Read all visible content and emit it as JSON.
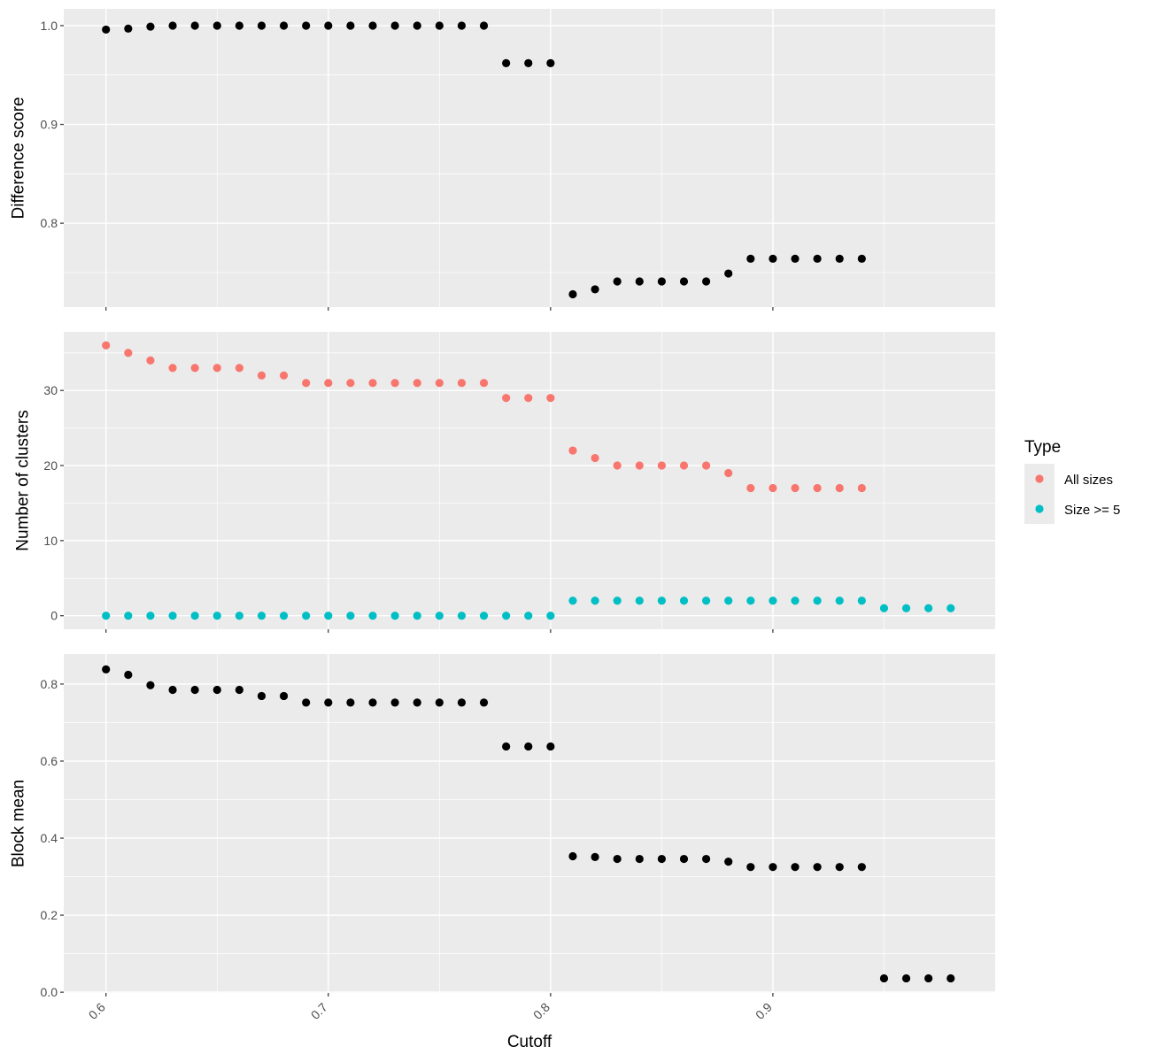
{
  "chart_data": [
    {
      "type": "scatter",
      "ylabel": "Difference score",
      "ylim": [
        0.715,
        1.017
      ],
      "y_ticks": [
        "0.8",
        "0.9",
        "1.0"
      ],
      "y_tick_values": [
        0.8,
        0.9,
        1.0
      ],
      "y_minor_values": [
        0.75,
        0.85,
        0.95
      ],
      "series": [
        {
          "color": "#000000",
          "points": [
            [
              0.6,
              0.996
            ],
            [
              0.61,
              0.997
            ],
            [
              0.62,
              0.999
            ],
            [
              0.63,
              1.0
            ],
            [
              0.64,
              1.0
            ],
            [
              0.65,
              1.0
            ],
            [
              0.66,
              1.0
            ],
            [
              0.67,
              1.0
            ],
            [
              0.68,
              1.0
            ],
            [
              0.69,
              1.0
            ],
            [
              0.7,
              1.0
            ],
            [
              0.71,
              1.0
            ],
            [
              0.72,
              1.0
            ],
            [
              0.73,
              1.0
            ],
            [
              0.74,
              1.0
            ],
            [
              0.75,
              1.0
            ],
            [
              0.76,
              1.0
            ],
            [
              0.77,
              1.0
            ],
            [
              0.78,
              0.962
            ],
            [
              0.79,
              0.962
            ],
            [
              0.8,
              0.962
            ],
            [
              0.81,
              0.728
            ],
            [
              0.82,
              0.733
            ],
            [
              0.83,
              0.741
            ],
            [
              0.84,
              0.741
            ],
            [
              0.85,
              0.741
            ],
            [
              0.86,
              0.741
            ],
            [
              0.87,
              0.741
            ],
            [
              0.88,
              0.749
            ],
            [
              0.89,
              0.764
            ],
            [
              0.9,
              0.764
            ],
            [
              0.91,
              0.764
            ],
            [
              0.92,
              0.764
            ],
            [
              0.93,
              0.764
            ],
            [
              0.94,
              0.764
            ]
          ]
        }
      ]
    },
    {
      "type": "scatter",
      "ylabel": "Number of clusters",
      "ylim": [
        -1.8,
        37.8
      ],
      "y_ticks": [
        "0",
        "10",
        "20",
        "30"
      ],
      "y_tick_values": [
        0,
        10,
        20,
        30
      ],
      "y_minor_values": [
        5,
        15,
        25,
        35
      ],
      "legend": {
        "title": "Type",
        "placement": "right",
        "entries": [
          {
            "label": "All sizes",
            "color": "#F8766D"
          },
          {
            "label": "Size >= 5",
            "color": "#00BFC4"
          }
        ]
      },
      "series": [
        {
          "name": "All sizes",
          "color": "#F8766D",
          "points": [
            [
              0.6,
              36
            ],
            [
              0.61,
              35
            ],
            [
              0.62,
              34
            ],
            [
              0.63,
              33
            ],
            [
              0.64,
              33
            ],
            [
              0.65,
              33
            ],
            [
              0.66,
              33
            ],
            [
              0.67,
              32
            ],
            [
              0.68,
              32
            ],
            [
              0.69,
              31
            ],
            [
              0.7,
              31
            ],
            [
              0.71,
              31
            ],
            [
              0.72,
              31
            ],
            [
              0.73,
              31
            ],
            [
              0.74,
              31
            ],
            [
              0.75,
              31
            ],
            [
              0.76,
              31
            ],
            [
              0.77,
              31
            ],
            [
              0.78,
              29
            ],
            [
              0.79,
              29
            ],
            [
              0.8,
              29
            ],
            [
              0.81,
              22
            ],
            [
              0.82,
              21
            ],
            [
              0.83,
              20
            ],
            [
              0.84,
              20
            ],
            [
              0.85,
              20
            ],
            [
              0.86,
              20
            ],
            [
              0.87,
              20
            ],
            [
              0.88,
              19
            ],
            [
              0.89,
              17
            ],
            [
              0.9,
              17
            ],
            [
              0.91,
              17
            ],
            [
              0.92,
              17
            ],
            [
              0.93,
              17
            ],
            [
              0.94,
              17
            ]
          ]
        },
        {
          "name": "Size >= 5",
          "color": "#00BFC4",
          "points": [
            [
              0.6,
              0
            ],
            [
              0.61,
              0
            ],
            [
              0.62,
              0
            ],
            [
              0.63,
              0
            ],
            [
              0.64,
              0
            ],
            [
              0.65,
              0
            ],
            [
              0.66,
              0
            ],
            [
              0.67,
              0
            ],
            [
              0.68,
              0
            ],
            [
              0.69,
              0
            ],
            [
              0.7,
              0
            ],
            [
              0.71,
              0
            ],
            [
              0.72,
              0
            ],
            [
              0.73,
              0
            ],
            [
              0.74,
              0
            ],
            [
              0.75,
              0
            ],
            [
              0.76,
              0
            ],
            [
              0.77,
              0
            ],
            [
              0.78,
              0
            ],
            [
              0.79,
              0
            ],
            [
              0.8,
              0
            ],
            [
              0.81,
              2
            ],
            [
              0.82,
              2
            ],
            [
              0.83,
              2
            ],
            [
              0.84,
              2
            ],
            [
              0.85,
              2
            ],
            [
              0.86,
              2
            ],
            [
              0.87,
              2
            ],
            [
              0.88,
              2
            ],
            [
              0.89,
              2
            ],
            [
              0.9,
              2
            ],
            [
              0.91,
              2
            ],
            [
              0.92,
              2
            ],
            [
              0.93,
              2
            ],
            [
              0.94,
              2
            ],
            [
              0.95,
              1
            ],
            [
              0.96,
              1
            ],
            [
              0.97,
              1
            ],
            [
              0.98,
              1
            ]
          ]
        }
      ]
    },
    {
      "type": "scatter",
      "ylabel": "Block mean",
      "ylim": [
        -0.002,
        0.878
      ],
      "y_ticks": [
        "0.0",
        "0.2",
        "0.4",
        "0.6",
        "0.8"
      ],
      "y_tick_values": [
        0.0,
        0.2,
        0.4,
        0.6,
        0.8
      ],
      "y_minor_values": [
        0.1,
        0.3,
        0.5,
        0.7
      ],
      "xlabel": "Cutoff",
      "series": [
        {
          "color": "#000000",
          "points": [
            [
              0.6,
              0.838
            ],
            [
              0.61,
              0.824
            ],
            [
              0.62,
              0.797
            ],
            [
              0.63,
              0.785
            ],
            [
              0.64,
              0.785
            ],
            [
              0.65,
              0.785
            ],
            [
              0.66,
              0.785
            ],
            [
              0.67,
              0.769
            ],
            [
              0.68,
              0.769
            ],
            [
              0.69,
              0.752
            ],
            [
              0.7,
              0.752
            ],
            [
              0.71,
              0.752
            ],
            [
              0.72,
              0.752
            ],
            [
              0.73,
              0.752
            ],
            [
              0.74,
              0.752
            ],
            [
              0.75,
              0.752
            ],
            [
              0.76,
              0.752
            ],
            [
              0.77,
              0.752
            ],
            [
              0.78,
              0.638
            ],
            [
              0.79,
              0.638
            ],
            [
              0.8,
              0.638
            ],
            [
              0.81,
              0.353
            ],
            [
              0.82,
              0.351
            ],
            [
              0.83,
              0.346
            ],
            [
              0.84,
              0.346
            ],
            [
              0.85,
              0.346
            ],
            [
              0.86,
              0.346
            ],
            [
              0.87,
              0.346
            ],
            [
              0.88,
              0.339
            ],
            [
              0.89,
              0.325
            ],
            [
              0.9,
              0.325
            ],
            [
              0.91,
              0.325
            ],
            [
              0.92,
              0.325
            ],
            [
              0.93,
              0.325
            ],
            [
              0.94,
              0.325
            ],
            [
              0.95,
              0.036
            ],
            [
              0.96,
              0.036
            ],
            [
              0.97,
              0.036
            ],
            [
              0.98,
              0.036
            ]
          ]
        }
      ]
    }
  ],
  "x_axis": {
    "title": "Cutoff",
    "xlim": [
      0.581,
      1.0
    ]
  },
  "x_ticks": [
    {
      "label": "0.6",
      "value": 0.6
    },
    {
      "label": "0.7",
      "value": 0.7
    },
    {
      "label": "0.8",
      "value": 0.8
    },
    {
      "label": "0.9",
      "value": 0.9
    }
  ],
  "x_minor_values": [
    0.65,
    0.75,
    0.85,
    0.95
  ]
}
